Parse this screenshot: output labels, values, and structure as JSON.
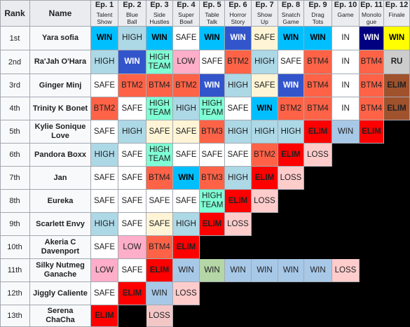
{
  "header": {
    "rank_label": "Rank",
    "name_label": "Name",
    "episodes": [
      {
        "num": "Ep. 1",
        "title": "Talent\nShow"
      },
      {
        "num": "Ep. 2",
        "title": "Blue\nBall"
      },
      {
        "num": "Ep. 3",
        "title": "Side\nHustles"
      },
      {
        "num": "Ep. 4",
        "title": "Super\nBowl"
      },
      {
        "num": "Ep. 5",
        "title": "Table\nTalk"
      },
      {
        "num": "Ep. 6",
        "title": "Horror\nStory"
      },
      {
        "num": "Ep. 7",
        "title": "Show\nUp"
      },
      {
        "num": "Ep. 8",
        "title": "Snatch\nGame"
      },
      {
        "num": "Ep. 9",
        "title": "Drag\nTots"
      },
      {
        "num": "Ep. 10",
        "title": "Game"
      },
      {
        "num": "Ep. 11",
        "title": "Monolo\ngue"
      },
      {
        "num": "Ep. 12",
        "title": "Finale"
      }
    ]
  },
  "rows": [
    {
      "rank": "1st",
      "name": "Yara sofia",
      "results": [
        "WIN",
        "HIGH",
        "WIN",
        "SAFE",
        "WIN",
        "WIN",
        "SAFE",
        "WIN",
        "WIN",
        "IN",
        "WIN",
        "WIN"
      ]
    },
    {
      "rank": "2nd",
      "name": "Ra'Jah O'Hara",
      "results": [
        "HIGH",
        "WIN",
        "HIGH\nTEAM",
        "LOW",
        "SAFE",
        "BTM2",
        "HIGH",
        "SAFE",
        "BTM4",
        "IN",
        "BTM4",
        "RU"
      ]
    },
    {
      "rank": "3rd",
      "name": "Ginger Minj",
      "results": [
        "SAFE",
        "BTM2",
        "BTM4",
        "BTM2",
        "WIN",
        "HIGH",
        "SAFE",
        "WIN",
        "BTM4",
        "IN",
        "BTM4",
        "ELIM"
      ]
    },
    {
      "rank": "4th",
      "name": "Trinity K Bonet",
      "results": [
        "BTM2",
        "SAFE",
        "HIGH\nTEAM",
        "HIGH",
        "HIGH\nTEAM",
        "SAFE",
        "WIN",
        "BTM2",
        "BTM4",
        "IN",
        "BTM4",
        "ELIM"
      ]
    },
    {
      "rank": "5th",
      "name": "Kylie Sonique\nLove",
      "results": [
        "SAFE",
        "HIGH",
        "SAFE",
        "SAFE",
        "BTM3",
        "HIGH",
        "HIGH",
        "HIGH",
        "ELIM",
        "WIN",
        "ELIM",
        ""
      ]
    },
    {
      "rank": "6th",
      "name": "Pandora Boxx",
      "results": [
        "HIGH",
        "SAFE",
        "HIGH\nTEAM",
        "SAFE",
        "SAFE",
        "SAFE",
        "BTM2",
        "ELIM",
        "LOSS",
        "",
        "",
        ""
      ]
    },
    {
      "rank": "7th",
      "name": "Jan",
      "results": [
        "SAFE",
        "SAFE",
        "BTM4",
        "WIN",
        "BTM3",
        "HIGH",
        "ELIM",
        "LOSS",
        "",
        "",
        "",
        ""
      ]
    },
    {
      "rank": "8th",
      "name": "Eureka",
      "results": [
        "SAFE",
        "SAFE",
        "SAFE",
        "SAFE",
        "HIGH\nTEAM",
        "ELIM",
        "LOSS",
        "",
        "",
        "",
        "",
        ""
      ]
    },
    {
      "rank": "9th",
      "name": "Scarlett Envy",
      "results": [
        "HIGH",
        "SAFE",
        "SAFE",
        "HIGH",
        "ELIM",
        "LOSS",
        "",
        "",
        "",
        "",
        "",
        ""
      ]
    },
    {
      "rank": "10th",
      "name": "Akeria C\nDavenport",
      "results": [
        "SAFE",
        "LOW",
        "BTM4",
        "ELIM",
        "",
        "",
        "",
        "",
        "",
        "",
        "",
        ""
      ]
    },
    {
      "rank": "11th",
      "name": "Silky Nutmeg\nGanache",
      "results": [
        "LOW",
        "SAFE",
        "ELIM",
        "WIN",
        "WIN",
        "WIN",
        "WIN",
        "WIN",
        "WIN",
        "LOSS",
        "",
        ""
      ]
    },
    {
      "rank": "12th",
      "name": "Jiggly Caliente",
      "results": [
        "SAFE",
        "ELIM",
        "WIN",
        "LOSS",
        "",
        "",
        "",
        "",
        "",
        "",
        "",
        ""
      ]
    },
    {
      "rank": "13th",
      "name": "Serena ChaCha",
      "results": [
        "ELIM",
        "",
        "LOSS",
        "",
        "",
        "",
        "",
        "",
        "",
        "",
        "",
        ""
      ]
    }
  ],
  "overrides": [
    {
      "row": 0,
      "col": 11,
      "bg": "#ffff00"
    },
    {
      "row": 10,
      "col": 4,
      "bg": "#b5d6a7"
    },
    {
      "row": 10,
      "col": 5,
      "bg": "#a8c8e8"
    },
    {
      "row": 10,
      "col": 6,
      "bg": "#a8c8e8"
    },
    {
      "row": 10,
      "col": 7,
      "bg": "#a8c8e8"
    },
    {
      "row": 10,
      "col": 8,
      "bg": "#a8c8e8"
    },
    {
      "row": 12,
      "col": 2,
      "bg": "#f4c7c7"
    }
  ],
  "colors": {
    "WIN": {
      "bg": "#00bfff",
      "fg": "#000000",
      "bold": true
    },
    "WIN_DARK": {
      "bg": "#3355cc",
      "fg": "#ffffff",
      "bold": true
    },
    "WIN_NAVY": {
      "bg": "#000080",
      "fg": "#ffffff",
      "bold": true
    },
    "WIN_GAME": {
      "bg": "#a8c8e8",
      "fg": "#202122",
      "bold": false
    },
    "HIGH": {
      "bg": "#add8e6",
      "fg": "#202122",
      "bold": false
    },
    "HIGH TEAM": {
      "bg": "#7fffd4",
      "fg": "#202122",
      "bold": false
    },
    "SAFE": {
      "bg": "#ffffff",
      "fg": "#202122",
      "bold": false
    },
    "SAFE_CREAM": {
      "bg": "#fff5d6",
      "fg": "#202122",
      "bold": false
    },
    "LOW": {
      "bg": "#ffaec9",
      "fg": "#202122",
      "bold": false
    },
    "BTM": {
      "bg": "#ff6347",
      "fg": "#202122",
      "bold": false
    },
    "ELIM": {
      "bg": "#ff0000",
      "fg": "#202122",
      "bold": true
    },
    "ELIM_FINALE": {
      "bg": "#a0522d",
      "fg": "#202122",
      "bold": true
    },
    "LOSS": {
      "bg": "#ffcccc",
      "fg": "#202122",
      "bold": false
    },
    "IN": {
      "bg": "#ffffff",
      "fg": "#202122",
      "bold": false
    },
    "RU": {
      "bg": "#cccccc",
      "fg": "#202122",
      "bold": true
    },
    "EMPTY": {
      "bg": "#000000"
    }
  }
}
